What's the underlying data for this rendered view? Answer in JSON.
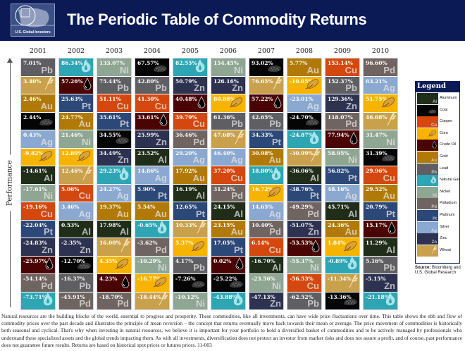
{
  "header": {
    "title": "The Periodic Table of Commodity Returns",
    "logo_text": "U.S. Global Investors"
  },
  "axis_label": "Performance",
  "legend": {
    "title": "Legend",
    "source_label": "Source:",
    "source_text": "Bloomberg and U.S. Global Research"
  },
  "commodities": {
    "Al": {
      "name": "Aluminum",
      "symbol": "Al",
      "color": "#1f2d19",
      "icon": null
    },
    "Coal": {
      "name": "Coal",
      "symbol": "",
      "color": "#050505",
      "icon": "coal-icon"
    },
    "Cu": {
      "name": "Copper",
      "symbol": "Cu",
      "color": "#d4480f",
      "icon": null
    },
    "Corn": {
      "name": "Corn",
      "symbol": "",
      "color": "#f6b400",
      "icon": "corn-icon"
    },
    "Oil": {
      "name": "Crude Oil",
      "symbol": "",
      "color": "#4a0404",
      "icon": "oil-drop-icon"
    },
    "Au": {
      "name": "Gold",
      "symbol": "Au",
      "color": "#b17a08",
      "icon": null
    },
    "Pb": {
      "name": "Lead",
      "symbol": "Pb",
      "color": "#5f5f63",
      "icon": null
    },
    "NG": {
      "name": "Natural Gas",
      "symbol": "",
      "color": "#2ea5b3",
      "icon": "flame-icon"
    },
    "Ni": {
      "name": "Nickel",
      "symbol": "Ni",
      "color": "#8fa693",
      "icon": null
    },
    "Pd": {
      "name": "Palladium",
      "symbol": "Pd",
      "color": "#706461",
      "icon": null
    },
    "Pt": {
      "name": "Platinum",
      "symbol": "Pt",
      "color": "#2c4878",
      "icon": null
    },
    "Ag": {
      "name": "Silver",
      "symbol": "Ag",
      "color": "#8aa8d0",
      "icon": null
    },
    "Zn": {
      "name": "Zinc",
      "symbol": "Zn",
      "color": "#2c3250",
      "icon": null
    },
    "Wheat": {
      "name": "Wheat",
      "symbol": "",
      "color": "#c9a14c",
      "icon": "wheat-icon"
    }
  },
  "legend_order": [
    "Al",
    "Coal",
    "Cu",
    "Corn",
    "Oil",
    "Au",
    "Pb",
    "NG",
    "Ni",
    "Pd",
    "Pt",
    "Ag",
    "Zn",
    "Wheat"
  ],
  "chart_data": {
    "type": "table",
    "title": "The Periodic Table of Commodity Returns",
    "ylabel": "Performance",
    "unit": "%",
    "years": [
      {
        "year": "2001",
        "cells": [
          [
            "Pb",
            "7.01%"
          ],
          [
            "Wheat",
            "3.40%"
          ],
          [
            "Au",
            "2.46%"
          ],
          [
            "Coal",
            "2.44%"
          ],
          [
            "Ag",
            "0.43%"
          ],
          [
            "Corn",
            "-9.82%"
          ],
          [
            "Al",
            "-14.61%"
          ],
          [
            "Ni",
            "-17.61%"
          ],
          [
            "Cu",
            "-19.16%"
          ],
          [
            "Pt",
            "-22.04%"
          ],
          [
            "Zn",
            "-24.83%"
          ],
          [
            "Oil",
            "-25.97%"
          ],
          [
            "Pd",
            "-54.14%"
          ],
          [
            "NG",
            "-73.71%"
          ]
        ]
      },
      {
        "year": "2002",
        "cells": [
          [
            "NG",
            "86.34%"
          ],
          [
            "Oil",
            "57.26%"
          ],
          [
            "Pt",
            "25.63%"
          ],
          [
            "Au",
            "24.77%"
          ],
          [
            "Ni",
            "21.46%"
          ],
          [
            "Corn",
            "12.80%"
          ],
          [
            "Wheat",
            "12.46%"
          ],
          [
            "Cu",
            "5.06%"
          ],
          [
            "Ag",
            "3.46%"
          ],
          [
            "Al",
            "0.53%"
          ],
          [
            "Zn",
            "-2.35%"
          ],
          [
            "Coal",
            "-12.70%"
          ],
          [
            "Pb",
            "-16.37%"
          ],
          [
            "Pd",
            "-45.91%"
          ]
        ]
      },
      {
        "year": "2003",
        "cells": [
          [
            "Ni",
            "133.07%"
          ],
          [
            "Pb",
            "75.44%"
          ],
          [
            "Cu",
            "51.11%"
          ],
          [
            "Pt",
            "35.61%"
          ],
          [
            "Coal",
            "34.55%"
          ],
          [
            "Zn",
            "34.49%"
          ],
          [
            "NG",
            "29.23%"
          ],
          [
            "Ag",
            "24.27%"
          ],
          [
            "Au",
            "19.37%"
          ],
          [
            "Al",
            "17.98%"
          ],
          [
            "Wheat",
            "16.00%"
          ],
          [
            "Corn",
            "4.35%"
          ],
          [
            "Oil",
            "4.23%"
          ],
          [
            "Pd",
            "-18.70%"
          ]
        ]
      },
      {
        "year": "2004",
        "cells": [
          [
            "Coal",
            "67.57%"
          ],
          [
            "Pb",
            "42.80%"
          ],
          [
            "Cu",
            "41.30%"
          ],
          [
            "Oil",
            "33.61%"
          ],
          [
            "Zn",
            "25.99%"
          ],
          [
            "Al",
            "23.52%"
          ],
          [
            "Ag",
            "14.86%"
          ],
          [
            "Pt",
            "5.90%"
          ],
          [
            "Au",
            "5.54%"
          ],
          [
            "NG",
            "-0.65%"
          ],
          [
            "Pd",
            "-3.62%"
          ],
          [
            "Ni",
            "-10.29%"
          ],
          [
            "Corn",
            "-16.77%"
          ],
          [
            "Wheat",
            "-18.44%"
          ]
        ]
      },
      {
        "year": "2005",
        "cells": [
          [
            "NG",
            "82.55%"
          ],
          [
            "Zn",
            "50.79%"
          ],
          [
            "Oil",
            "40.48%"
          ],
          [
            "Cu",
            "39.79%"
          ],
          [
            "Pd",
            "36.46%"
          ],
          [
            "Ag",
            "29.20%"
          ],
          [
            "Au",
            "17.92%"
          ],
          [
            "Al",
            "16.19%"
          ],
          [
            "Pt",
            "12.65%"
          ],
          [
            "Wheat",
            "10.33%"
          ],
          [
            "Corn",
            "5.37%"
          ],
          [
            "Pb",
            "4.17%"
          ],
          [
            "Coal",
            "-7.26%"
          ],
          [
            "Ni",
            "-10.12%"
          ]
        ]
      },
      {
        "year": "2006",
        "cells": [
          [
            "Ni",
            "154.45%"
          ],
          [
            "Zn",
            "126.16%"
          ],
          [
            "Corn",
            "80.88%"
          ],
          [
            "Pb",
            "61.36%"
          ],
          [
            "Wheat",
            "47.68%"
          ],
          [
            "Ag",
            "46.40%"
          ],
          [
            "Cu",
            "37.20%"
          ],
          [
            "Pd",
            "31.24%"
          ],
          [
            "Al",
            "24.15%"
          ],
          [
            "Au",
            "23.15%"
          ],
          [
            "Pt",
            "17.05%"
          ],
          [
            "Oil",
            "0.02%"
          ],
          [
            "Coal",
            "-25.22%"
          ],
          [
            "NG",
            "-43.88%"
          ]
        ]
      },
      {
        "year": "2007",
        "cells": [
          [
            "Coal",
            "93.02%"
          ],
          [
            "Wheat",
            "76.65%"
          ],
          [
            "Oil",
            "57.22%"
          ],
          [
            "Pb",
            "42.65%"
          ],
          [
            "Pt",
            "34.33%"
          ],
          [
            "Au",
            "30.98%"
          ],
          [
            "NG",
            "18.80%"
          ],
          [
            "Corn",
            "16.72%"
          ],
          [
            "Ag",
            "14.65%"
          ],
          [
            "Pd",
            "10.40%"
          ],
          [
            "Cu",
            "6.14%"
          ],
          [
            "Al",
            "-16.70%"
          ],
          [
            "Ni",
            "-23.56%"
          ],
          [
            "Zn",
            "-47.13%"
          ]
        ]
      },
      {
        "year": "2008",
        "cells": [
          [
            "Au",
            "5.77%"
          ],
          [
            "Corn",
            "-10.65%"
          ],
          [
            "Ag",
            "-23.01%"
          ],
          [
            "Coal",
            "-24.70%"
          ],
          [
            "NG",
            "-24.87%"
          ],
          [
            "Wheat",
            "-30.99%"
          ],
          [
            "Al",
            "-36.06%"
          ],
          [
            "Pt",
            "-38.76%"
          ],
          [
            "Pd",
            "-49.29%"
          ],
          [
            "Zn",
            "-51.07%"
          ],
          [
            "Oil",
            "-53.53%"
          ],
          [
            "Ni",
            "-55.37%"
          ],
          [
            "Cu",
            "-56.53%"
          ],
          [
            "Pb",
            "-62.52%"
          ]
        ]
      },
      {
        "year": "2009",
        "cells": [
          [
            "Cu",
            "153.14%"
          ],
          [
            "Pb",
            "152.37%"
          ],
          [
            "Zn",
            "129.36%"
          ],
          [
            "Pd",
            "118.07%"
          ],
          [
            "Oil",
            "77.94%"
          ],
          [
            "Ni",
            "58.95%"
          ],
          [
            "Pt",
            "56.82%"
          ],
          [
            "Ag",
            "48.16%"
          ],
          [
            "Al",
            "45.71%"
          ],
          [
            "Au",
            "24.36%"
          ],
          [
            "Corn",
            "1.84%"
          ],
          [
            "NG",
            "-0.89%"
          ],
          [
            "Wheat",
            "-11.34%"
          ],
          [
            "Coal",
            "-13.36%"
          ]
        ]
      },
      {
        "year": "2010",
        "cells": [
          [
            "Pd",
            "96.60%"
          ],
          [
            "Ag",
            "83.21%"
          ],
          [
            "Corn",
            "51.75%"
          ],
          [
            "Wheat",
            "46.68%"
          ],
          [
            "Ni",
            "31.47%"
          ],
          [
            "Coal",
            "31.39%"
          ],
          [
            "Cu",
            "29.96%"
          ],
          [
            "Au",
            "29.52%"
          ],
          [
            "Pt",
            "20.79%"
          ],
          [
            "Oil",
            "15.17%"
          ],
          [
            "Al",
            "11.29%"
          ],
          [
            "Pb",
            "5.16%"
          ],
          [
            "Zn",
            "-5.15%"
          ],
          [
            "NG",
            "-21.18%"
          ]
        ]
      }
    ]
  },
  "footer": {
    "lines": [
      "Natural resources are the building blocks of the world, essential to progress and prosperity. These commodities, like all investments, can have wide price fluctuations over time. This table shows the",
      "ebb and flow of commodity prices over the past decade and illustrates the principle of mean reversion – the concept that returns eventually move back towards their mean or average. The price movement of",
      "commodities is historically both seasonal and cyclical. That's why when investing in natural resources, we believe it is important for your portfolio to hold a diversified basket of commodities and",
      "to be actively managed by professionals who understand these specialized assets and the global trends impacting them. As with all investments, diversification does not protect an investor from",
      "market risks and does not assure a profit, and of course, past performance does not guarantee future results. Returns are based on historical spot prices or futures prices. 11-003"
    ]
  }
}
